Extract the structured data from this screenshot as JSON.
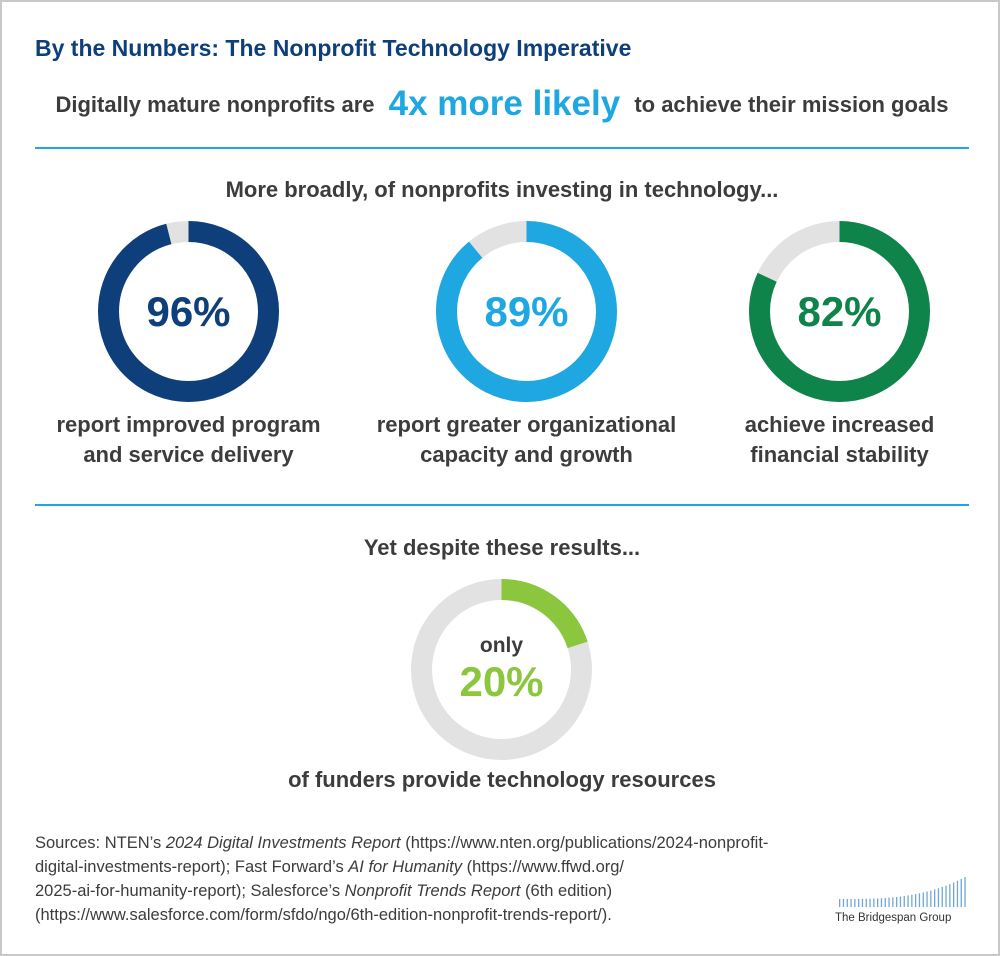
{
  "title": "By the Numbers: The Nonprofit Technology Imperative",
  "headline": {
    "before": "Digitally mature nonprofits are",
    "emphasis": "4x more likely",
    "after": "to achieve their mission goals"
  },
  "section1_label": "More broadly, of nonprofits investing in technology...",
  "section2_label": "Yet despite these results...",
  "colors": {
    "title": "#0f3f7a",
    "accent": "#1ea7e1",
    "track": "#e2e2e2",
    "dark_blue": "#0f3f7a",
    "light_blue": "#1ea7e1",
    "green": "#0e844a",
    "lime": "#8cc63f"
  },
  "chart_data": [
    {
      "type": "pie",
      "series": [
        {
          "values": [
            96,
            4
          ]
        }
      ],
      "center_label": "96%",
      "caption_lines": [
        "report improved program",
        "and service delivery"
      ],
      "color": "#0f3f7a"
    },
    {
      "type": "pie",
      "series": [
        {
          "values": [
            89,
            11
          ]
        }
      ],
      "center_label": "89%",
      "caption_lines": [
        "report greater organizational",
        "capacity and growth"
      ],
      "color": "#1ea7e1"
    },
    {
      "type": "pie",
      "series": [
        {
          "values": [
            82,
            18
          ]
        }
      ],
      "center_label": "82%",
      "caption_lines": [
        "achieve increased",
        "financial stability"
      ],
      "color": "#0e844a"
    },
    {
      "type": "pie",
      "series": [
        {
          "values": [
            20,
            80
          ]
        }
      ],
      "center_prefix": "only",
      "center_label": "20%",
      "caption_lines": [
        "of funders provide technology resources"
      ],
      "color": "#8cc63f"
    }
  ],
  "sources": {
    "line1": {
      "a": "Sources: NTEN’s ",
      "i": "2024 Digital Investments Report",
      "b": " (https://www.nten.org/publications/2024-nonprofit-"
    },
    "line2": {
      "a": "digital-investments-report); Fast Forward’s ",
      "i": "AI for Humanity",
      "b": " (https://www.ffwd.org/"
    },
    "line3": {
      "a": "2025-ai-for-humanity-report); Salesforce’s ",
      "i": "Nonprofit Trends Report",
      "b": " (6th edition)"
    },
    "line4": "(https://www.salesforce.com/form/sfdo/ngo/6th-edition-nonprofit-trends-report/)."
  },
  "logo": {
    "name": "bridgespan-logo-icon",
    "text": "The Bridgespan Group"
  }
}
